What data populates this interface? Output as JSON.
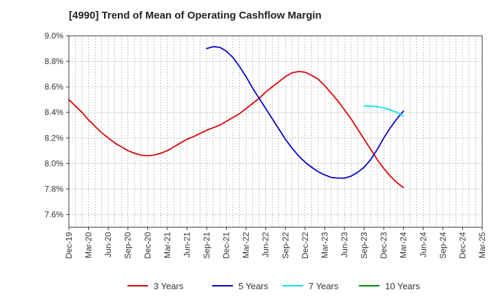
{
  "chart_data": {
    "type": "line",
    "title": "[4990]  Trend of Mean of Operating Cashflow Margin",
    "xlabel": "",
    "ylabel": "",
    "x_ticks": [
      "Dec-19",
      "Mar-20",
      "Jun-20",
      "Sep-20",
      "Dec-20",
      "Mar-21",
      "Jun-21",
      "Sep-21",
      "Dec-21",
      "Mar-22",
      "Jun-22",
      "Sep-22",
      "Dec-22",
      "Mar-23",
      "Jun-23",
      "Sep-23",
      "Dec-23",
      "Mar-24",
      "Jun-24",
      "Sep-24",
      "Dec-24",
      "Mar-25"
    ],
    "y_ticks": [
      "7.6%",
      "7.8%",
      "8.0%",
      "8.2%",
      "8.4%",
      "8.6%",
      "8.8%",
      "9.0%"
    ],
    "ylim": [
      7.5,
      9.0
    ],
    "y_unit": "%",
    "grid": true,
    "legend_position": "bottom",
    "series": [
      {
        "name": "3 Years",
        "color": "#dd0000",
        "x": [
          "Dec-19",
          "Jan-20",
          "Feb-20",
          "Mar-20",
          "Apr-20",
          "May-20",
          "Jun-20",
          "Jul-20",
          "Aug-20",
          "Sep-20",
          "Oct-20",
          "Nov-20",
          "Dec-20",
          "Jan-21",
          "Feb-21",
          "Mar-21",
          "Apr-21",
          "May-21",
          "Jun-21",
          "Jul-21",
          "Aug-21",
          "Sep-21",
          "Oct-21",
          "Nov-21",
          "Dec-21",
          "Jan-22",
          "Feb-22",
          "Mar-22",
          "Apr-22",
          "May-22",
          "Jun-22",
          "Jul-22",
          "Aug-22",
          "Sep-22",
          "Oct-22",
          "Nov-22",
          "Dec-22",
          "Jan-23",
          "Feb-23",
          "Mar-23",
          "Apr-23",
          "May-23",
          "Jun-23",
          "Jul-23",
          "Aug-23",
          "Sep-23",
          "Oct-23",
          "Nov-23",
          "Dec-23",
          "Jan-24",
          "Feb-24",
          "Mar-24"
        ],
        "values": [
          8.5,
          8.45,
          8.4,
          8.34,
          8.29,
          8.24,
          8.2,
          8.16,
          8.13,
          8.1,
          8.08,
          8.065,
          8.06,
          8.065,
          8.08,
          8.1,
          8.13,
          8.16,
          8.19,
          8.21,
          8.235,
          8.26,
          8.28,
          8.3,
          8.33,
          8.36,
          8.39,
          8.43,
          8.47,
          8.51,
          8.56,
          8.6,
          8.64,
          8.68,
          8.71,
          8.72,
          8.715,
          8.69,
          8.66,
          8.61,
          8.55,
          8.49,
          8.42,
          8.35,
          8.27,
          8.19,
          8.11,
          8.03,
          7.96,
          7.9,
          7.85,
          7.81
        ]
      },
      {
        "name": "5 Years",
        "color": "#0000cc",
        "x": [
          "Sep-21",
          "Oct-21",
          "Nov-21",
          "Dec-21",
          "Jan-22",
          "Feb-22",
          "Mar-22",
          "Apr-22",
          "May-22",
          "Jun-22",
          "Jul-22",
          "Aug-22",
          "Sep-22",
          "Oct-22",
          "Nov-22",
          "Dec-22",
          "Jan-23",
          "Feb-23",
          "Mar-23",
          "Apr-23",
          "May-23",
          "Jun-23",
          "Jul-23",
          "Aug-23",
          "Sep-23",
          "Oct-23",
          "Nov-23",
          "Dec-23",
          "Jan-24",
          "Feb-24",
          "Mar-24"
        ],
        "values": [
          8.9,
          8.915,
          8.91,
          8.88,
          8.83,
          8.76,
          8.68,
          8.59,
          8.51,
          8.43,
          8.35,
          8.27,
          8.19,
          8.12,
          8.06,
          8.01,
          7.97,
          7.935,
          7.91,
          7.89,
          7.885,
          7.885,
          7.9,
          7.93,
          7.97,
          8.03,
          8.11,
          8.2,
          8.28,
          8.35,
          8.41
        ]
      },
      {
        "name": "7 Years",
        "color": "#00e5ee",
        "x": [
          "Sep-23",
          "Oct-23",
          "Nov-23",
          "Dec-23",
          "Jan-24",
          "Feb-24",
          "Mar-24"
        ],
        "values": [
          8.45,
          8.45,
          8.445,
          8.435,
          8.42,
          8.4,
          8.37
        ]
      },
      {
        "name": "10 Years",
        "color": "#008800",
        "x": [],
        "values": []
      }
    ]
  }
}
